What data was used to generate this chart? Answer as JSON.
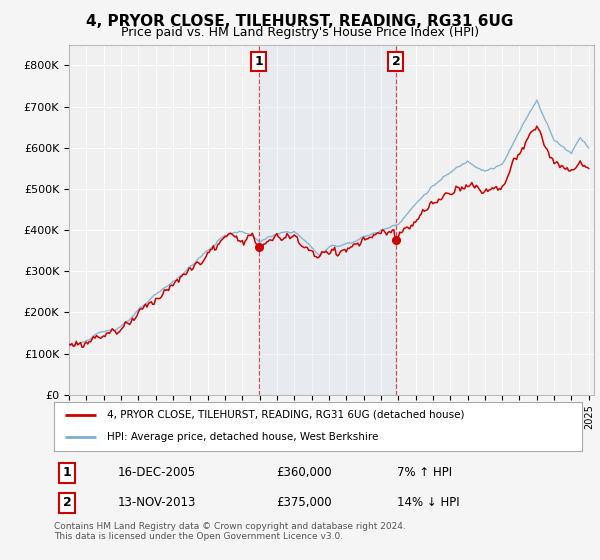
{
  "title": "4, PRYOR CLOSE, TILEHURST, READING, RG31 6UG",
  "subtitle": "Price paid vs. HM Land Registry's House Price Index (HPI)",
  "ylim": [
    0,
    850000
  ],
  "yticks": [
    0,
    100000,
    200000,
    300000,
    400000,
    500000,
    600000,
    700000,
    800000
  ],
  "ytick_labels": [
    "£0",
    "£100K",
    "£200K",
    "£300K",
    "£400K",
    "£500K",
    "£600K",
    "£700K",
    "£800K"
  ],
  "background_color": "#f5f5f5",
  "plot_bg_color": "#f0f0f0",
  "grid_color": "#ffffff",
  "hpi_color": "#7bafd4",
  "price_color": "#cc0000",
  "t1_year": 2005.96,
  "t2_year": 2013.87,
  "t1_price": 360000,
  "t2_price": 375000,
  "legend_house": "4, PRYOR CLOSE, TILEHURST, READING, RG31 6UG (detached house)",
  "legend_hpi": "HPI: Average price, detached house, West Berkshire",
  "t1_date": "16-DEC-2005",
  "t2_date": "13-NOV-2013",
  "t1_hpi_rel": "7% ↑ HPI",
  "t2_hpi_rel": "14% ↓ HPI",
  "footnote": "Contains HM Land Registry data © Crown copyright and database right 2024.\nThis data is licensed under the Open Government Licence v3.0.",
  "title_fontsize": 11,
  "subtitle_fontsize": 9
}
